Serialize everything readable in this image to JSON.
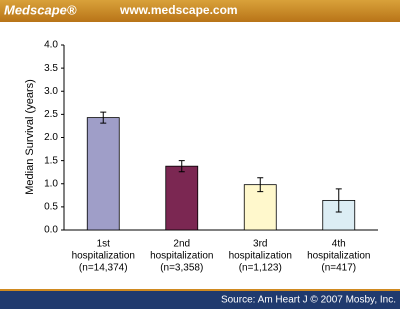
{
  "header": {
    "logo": "Medscape®",
    "url": "www.medscape.com"
  },
  "chart_data": {
    "type": "bar",
    "ylabel": "Median Survival (years)",
    "categories": [
      [
        "1st",
        "hospitalization",
        "(n=14,374)"
      ],
      [
        "2nd",
        "hospitalization",
        "(n=3,358)"
      ],
      [
        "3rd",
        "hospitalization",
        "(n=1,123)"
      ],
      [
        "4th",
        "hospitalization",
        "(n=417)"
      ]
    ],
    "values": [
      2.43,
      1.38,
      0.98,
      0.64
    ],
    "errors": [
      0.12,
      0.12,
      0.15,
      0.25
    ],
    "colors": [
      "#9f9ec8",
      "#7b2752",
      "#fff8cc",
      "#dcedf4"
    ],
    "ylim": [
      0,
      4
    ],
    "yticks": [
      {
        "value": 0,
        "label": "0.0"
      },
      0.5,
      {
        "value": 1,
        "label": "1.0"
      },
      1.5,
      {
        "value": 2,
        "label": "2.0"
      },
      2.5,
      {
        "value": 3,
        "label": "3.0"
      },
      3.5,
      {
        "value": 4,
        "label": "4.0"
      }
    ]
  },
  "footer": {
    "source": "Source: Am Heart J © 2007 Mosby, Inc."
  }
}
